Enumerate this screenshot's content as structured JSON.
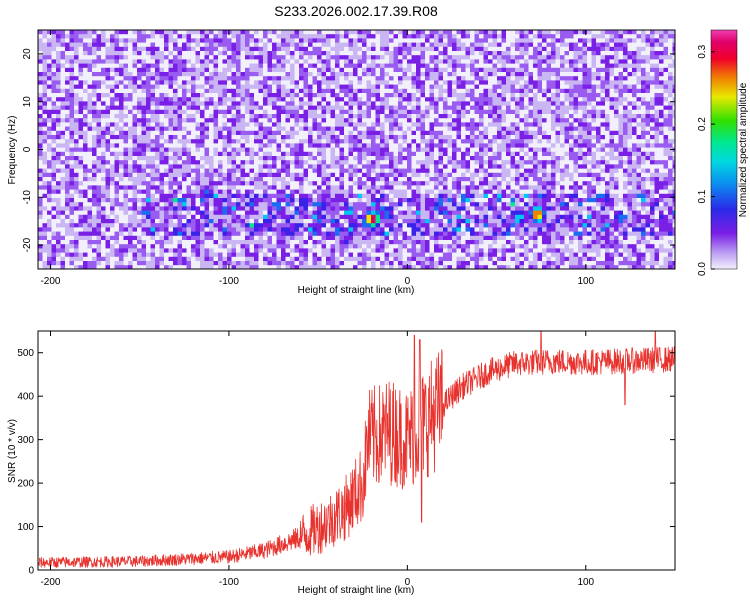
{
  "title": "S233.2026.002.17.39.R08",
  "chart_data": [
    {
      "type": "heatmap",
      "title": "S233.2026.002.17.39.R08",
      "xlabel": "Height of straight line (km)",
      "ylabel": "Frequency (Hz)",
      "xlim": [
        -207,
        150
      ],
      "ylim": [
        -25,
        25
      ],
      "xticks": [
        -200,
        -100,
        0,
        100
      ],
      "yticks": [
        -20,
        -10,
        0,
        10,
        20
      ],
      "colorbar": {
        "label": "Normalized spectral amplitude",
        "range": [
          0.0,
          0.33
        ],
        "ticks": [
          "0.0",
          "0.1",
          "0.2",
          "0.3"
        ],
        "tick_values": [
          0.0,
          0.1,
          0.2,
          0.3
        ]
      },
      "colormap": [
        "#f2f0fb",
        "#c9b6f2",
        "#9a5cf0",
        "#7a1fe6",
        "#3b22e8",
        "#1a6cf0",
        "#00c8f0",
        "#00e890",
        "#30e000",
        "#e8e800",
        "#f08000",
        "#f0002a",
        "#e0006a",
        "#f040b0"
      ],
      "hotspots": [
        {
          "x": -20,
          "y": -14.5,
          "value": 0.33
        },
        {
          "x": 72,
          "y": -13.5,
          "value": 0.3
        },
        {
          "x": 62,
          "y": -14,
          "value": 0.16
        },
        {
          "x": -113,
          "y": -9,
          "value": 0.12
        },
        {
          "x": -35,
          "y": -19,
          "value": 0.1
        }
      ],
      "band": {
        "frequency_range": [
          -18,
          -9
        ],
        "x_range": [
          -150,
          150
        ]
      }
    },
    {
      "type": "line",
      "xlabel": "Height of straight line (km)",
      "ylabel": "SNR (10 * v/v)",
      "xlim": [
        -207,
        150
      ],
      "ylim": [
        0,
        550
      ],
      "xticks": [
        -200,
        -100,
        0,
        100
      ],
      "yticks": [
        0,
        100,
        200,
        300,
        400,
        500
      ],
      "color": "#e8322d",
      "profile": [
        {
          "x": -207,
          "y": 17
        },
        {
          "x": -150,
          "y": 20
        },
        {
          "x": -100,
          "y": 30
        },
        {
          "x": -80,
          "y": 45
        },
        {
          "x": -60,
          "y": 75
        },
        {
          "x": -45,
          "y": 110
        },
        {
          "x": -35,
          "y": 140
        },
        {
          "x": -25,
          "y": 200
        },
        {
          "x": -22,
          "y": 300
        },
        {
          "x": -15,
          "y": 310
        },
        {
          "x": -10,
          "y": 320
        },
        {
          "x": 0,
          "y": 300
        },
        {
          "x": 10,
          "y": 340
        },
        {
          "x": 20,
          "y": 380
        },
        {
          "x": 30,
          "y": 420
        },
        {
          "x": 45,
          "y": 455
        },
        {
          "x": 60,
          "y": 475
        },
        {
          "x": 80,
          "y": 480
        },
        {
          "x": 100,
          "y": 478
        },
        {
          "x": 150,
          "y": 485
        }
      ],
      "spikes": [
        {
          "x": 4,
          "y": 540
        },
        {
          "x": 8,
          "y": 110
        },
        {
          "x": 7,
          "y": 530
        },
        {
          "x": 75,
          "y": 550
        },
        {
          "x": 122,
          "y": 380
        },
        {
          "x": 139,
          "y": 550
        }
      ]
    }
  ]
}
